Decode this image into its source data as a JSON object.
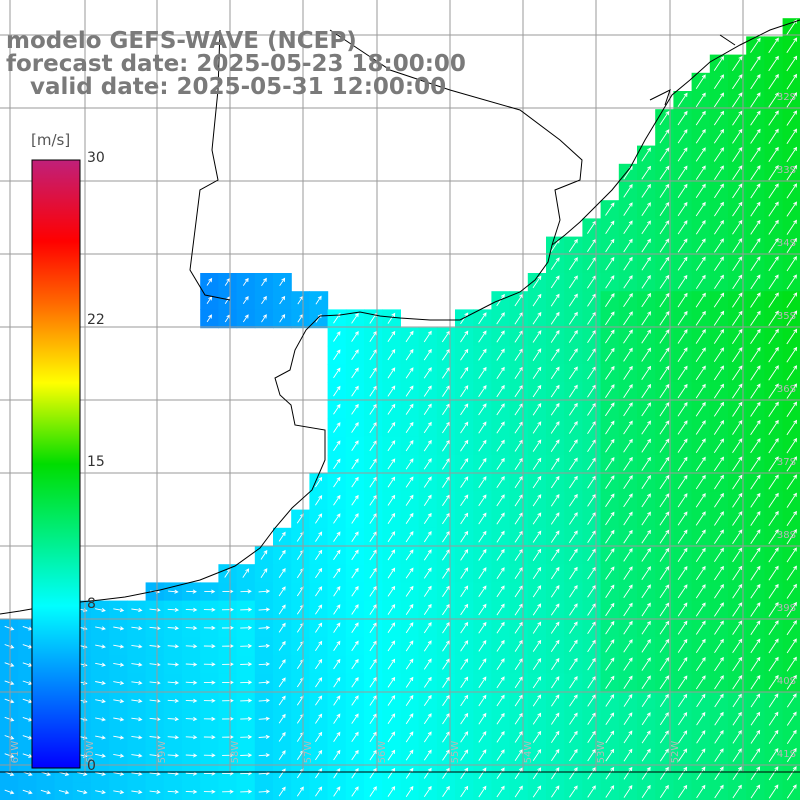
{
  "title": {
    "model": "modelo GEFS-WAVE (NCEP)",
    "forecast": "forecast date: 2025-05-23 18:00:00",
    "valid": "   valid date: 2025-05-31 12:00:00"
  },
  "colorbar": {
    "unit": "[m/s]",
    "min": 0,
    "max": 30,
    "ticks": [
      {
        "label": "30",
        "value": 30
      },
      {
        "label": "22",
        "value": 22
      },
      {
        "label": "15",
        "value": 15
      },
      {
        "label": "8",
        "value": 8
      },
      {
        "label": "0",
        "value": 0
      }
    ],
    "stops": [
      {
        "value": 0,
        "color": "#0000ff"
      },
      {
        "value": 8,
        "color": "#00ffff"
      },
      {
        "value": 15,
        "color": "#00dd00"
      },
      {
        "value": 19,
        "color": "#ffff00"
      },
      {
        "value": 23,
        "color": "#ff6600"
      },
      {
        "value": 26,
        "color": "#ff0000"
      },
      {
        "value": 30,
        "color": "#c0207a"
      }
    ]
  },
  "map": {
    "lon_min": -62,
    "lon_max": -51,
    "lat_min": -42,
    "lat_max": -31,
    "lat_labels": [
      "32S",
      "33S",
      "34S",
      "35S",
      "36S",
      "37S",
      "38S",
      "39S",
      "40S",
      "41S"
    ],
    "lon_labels": [
      "61W",
      "60W",
      "59W",
      "58W",
      "57W",
      "56W",
      "55W",
      "54W",
      "53W",
      "52W"
    ],
    "colors": {
      "land": "#ffffff",
      "grid": "#9a9a9a",
      "coast": "#000000",
      "arrow": "#ffffff"
    }
  }
}
